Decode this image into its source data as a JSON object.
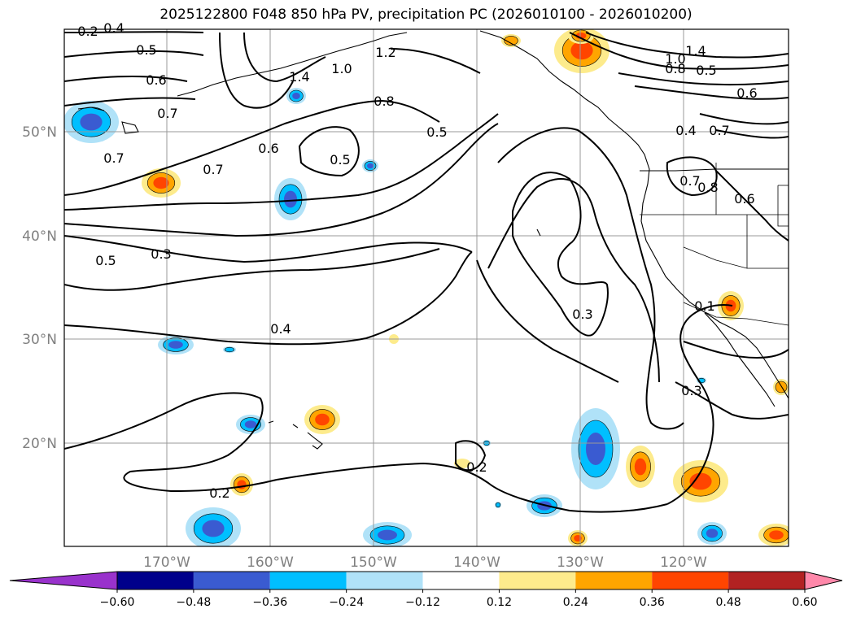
{
  "title": "2025122800 F048 850 hPa PV, precipitation PC (2026010100 - 2026010200)",
  "map": {
    "lat_labels": [
      "50°N",
      "40°N",
      "30°N",
      "20°N"
    ],
    "lon_labels": [
      "170°W",
      "160°W",
      "150°W",
      "140°W",
      "130°W",
      "120°W"
    ],
    "gridlines": true
  },
  "contour_labels": [
    "0.4",
    "0.5",
    "0.6",
    "0.7",
    "0.7",
    "0.7",
    "0.6",
    "0.5",
    "1.4",
    "1.0",
    "1.2",
    "0.8",
    "0.5",
    "1.0",
    "1.4",
    "0.8",
    "0.5",
    "0.6",
    "0.4",
    "0.7",
    "0.7",
    "0.8",
    "0.6",
    "0.5",
    "0.3",
    "0.4",
    "0.3",
    "0.1",
    "0.3",
    "0.2",
    "0.2",
    "0.2"
  ],
  "colorbar": {
    "ticks": [
      "−0.60",
      "−0.48",
      "−0.36",
      "−0.24",
      "−0.12",
      "0.12",
      "0.24",
      "0.36",
      "0.48",
      "0.60"
    ],
    "colors": [
      "#9932cc",
      "#00008b",
      "#3a5bd1",
      "#00bfff",
      "#b0e2f8",
      "#ffffff",
      "#fdeb8c",
      "#ffa500",
      "#ff4500",
      "#b22222",
      "#ff88aa"
    ]
  },
  "precip_colors": {
    "blue_light": "#b0e2f8",
    "blue_mid": "#00bfff",
    "blue_dark": "#3a5bd1",
    "yellow": "#fdeb8c",
    "orange": "#ffa500",
    "red": "#ff4500"
  }
}
